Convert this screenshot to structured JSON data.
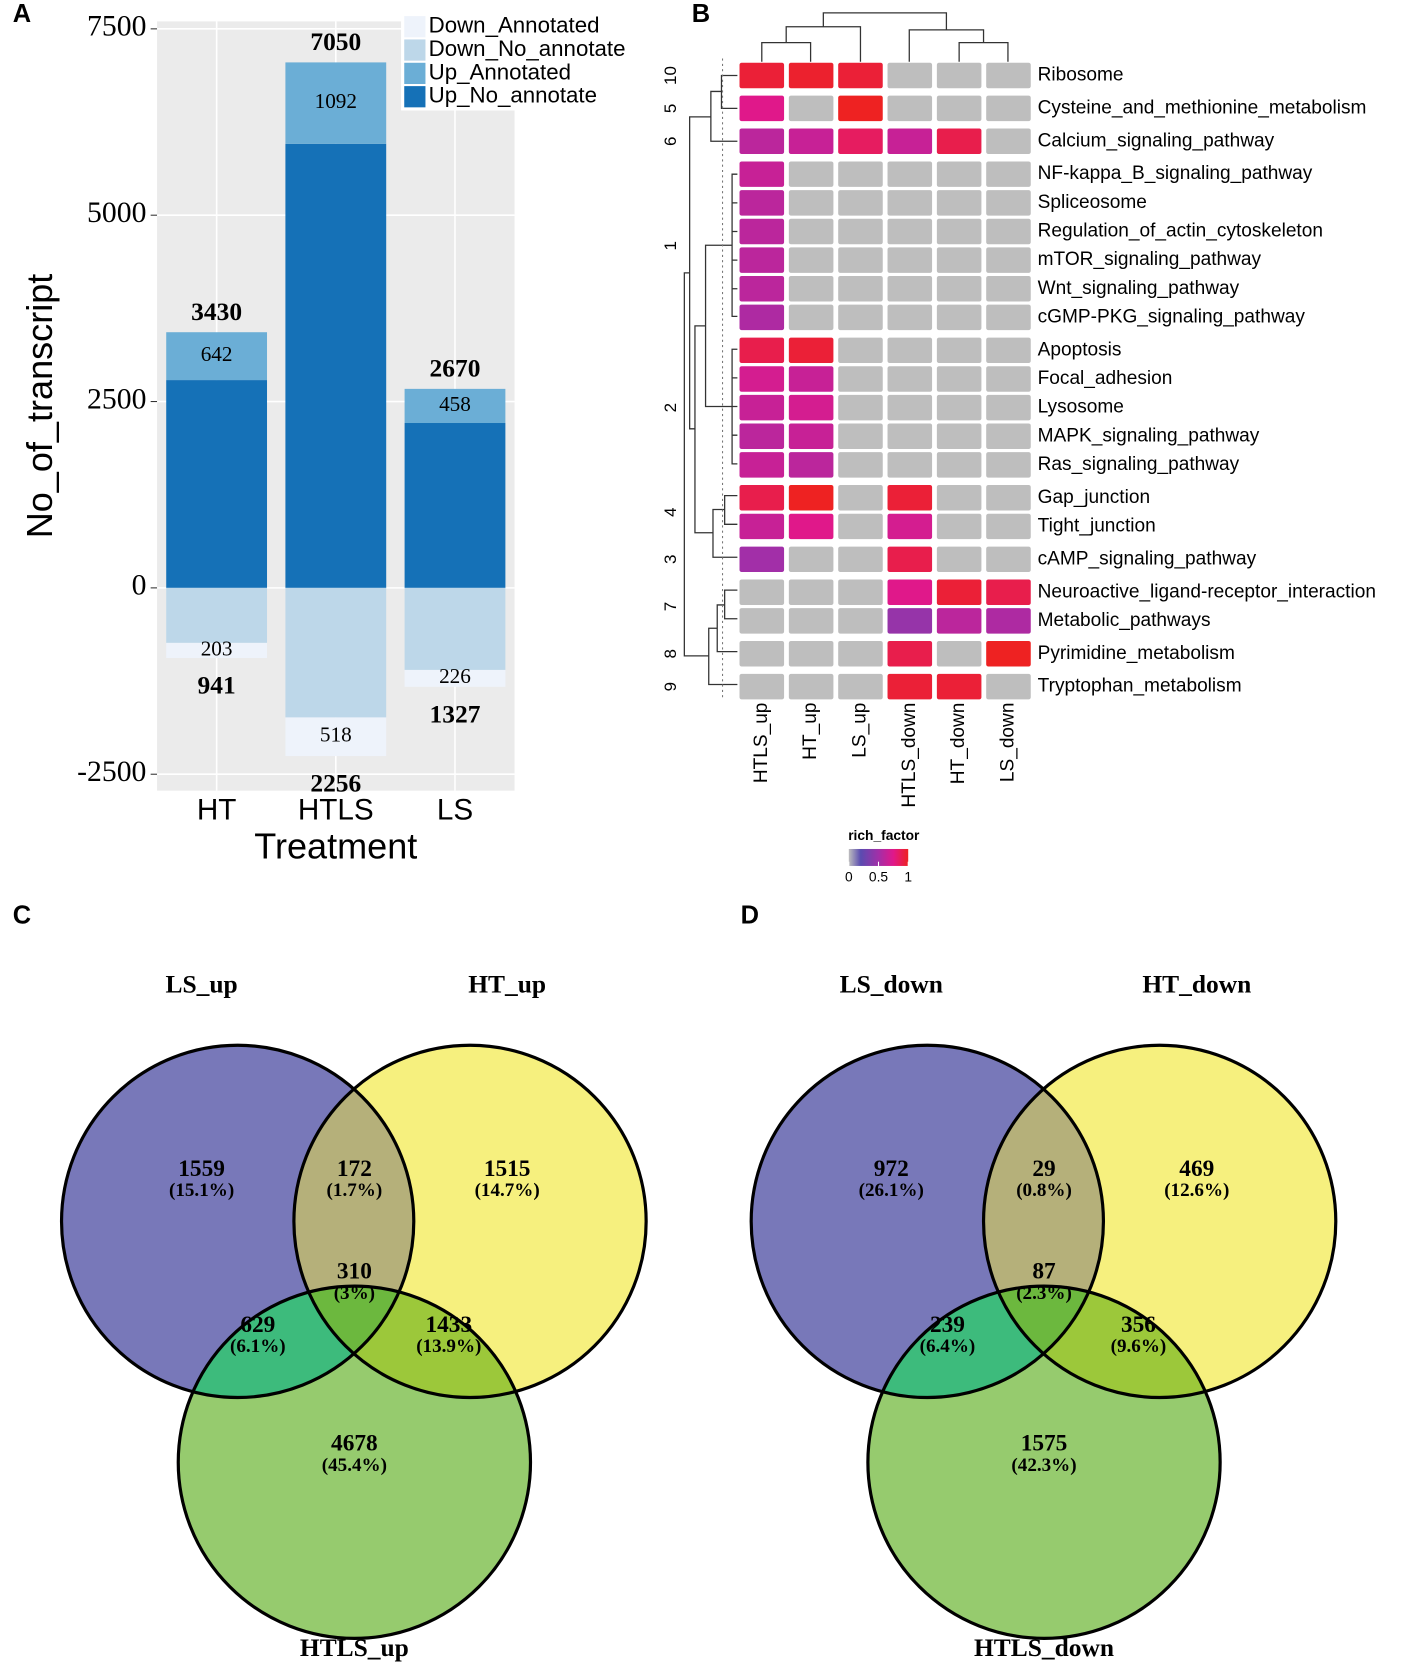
{
  "chart_data": [
    {
      "type": "bar",
      "panel": "A",
      "x_label": "Treatment",
      "y_label": "No_of_transcript",
      "categories": [
        "HT",
        "HTLS",
        "LS"
      ],
      "series": [
        {
          "name": "Down_Annotated",
          "color": "#eef3fb",
          "values": [
            -203,
            -518,
            -226
          ],
          "value_labels": [
            "203",
            "518",
            "226"
          ]
        },
        {
          "name": "Down_No_annotate",
          "color": "#bdd7e9",
          "values": [
            -738,
            -1738,
            -1101
          ]
        },
        {
          "name": "Up_Annotated",
          "color": "#6baed6",
          "values": [
            642,
            1092,
            458
          ],
          "labeled": true
        },
        {
          "name": "Up_No_annotate",
          "color": "#1571b7",
          "values": [
            2788,
            5958,
            2212
          ]
        }
      ],
      "up_totals": [
        3430,
        7050,
        2670
      ],
      "down_totals": [
        941,
        2256,
        1327
      ],
      "ylim": [
        -2720,
        7600
      ],
      "yticks": [
        7500,
        5000,
        2500,
        0,
        -2500
      ],
      "grid": true,
      "legend": "top-right"
    },
    {
      "type": "heatmap",
      "panel": "B",
      "rows": [
        "Ribosome",
        "Cysteine_and_methionine_metabolism",
        "Calcium_signaling_pathway",
        "NF-kappa_B_signaling_pathway",
        "Spliceosome",
        "Regulation_of_actin_cytoskeleton",
        "mTOR_signaling_pathway",
        "Wnt_signaling_pathway",
        "cGMP-PKG_signaling_pathway",
        "Apoptosis",
        "Focal_adhesion",
        "Lysosome",
        "MAPK_signaling_pathway",
        "Ras_signaling_pathway",
        "Gap_junction",
        "Tight_junction",
        "cAMP_signaling_pathway",
        "Neuroactive_ligand-receptor_interaction",
        "Metabolic_pathways",
        "Pyrimidine_metabolism",
        "Tryptophan_metabolism"
      ],
      "columns": [
        "HTLS_up",
        "HT_up",
        "LS_up",
        "HTLS_down",
        "HT_down",
        "LS_down"
      ],
      "values": [
        [
          0.95,
          0.97,
          0.95,
          null,
          null,
          null
        ],
        [
          0.75,
          null,
          1,
          null,
          null,
          null
        ],
        [
          0.6,
          0.65,
          0.85,
          0.65,
          0.9,
          null
        ],
        [
          0.65,
          null,
          null,
          null,
          null,
          null
        ],
        [
          0.6,
          null,
          null,
          null,
          null,
          null
        ],
        [
          0.6,
          null,
          null,
          null,
          null,
          null
        ],
        [
          0.6,
          null,
          null,
          null,
          null,
          null
        ],
        [
          0.6,
          null,
          null,
          null,
          null,
          null
        ],
        [
          0.55,
          null,
          null,
          null,
          null,
          null
        ],
        [
          0.9,
          0.95,
          null,
          null,
          null,
          null
        ],
        [
          0.7,
          0.65,
          null,
          null,
          null,
          null
        ],
        [
          0.65,
          0.7,
          null,
          null,
          null,
          null
        ],
        [
          0.6,
          0.65,
          null,
          null,
          null,
          null
        ],
        [
          0.65,
          0.6,
          null,
          null,
          null,
          null
        ],
        [
          0.9,
          1,
          null,
          0.95,
          null,
          null
        ],
        [
          0.65,
          0.75,
          null,
          0.7,
          null,
          null
        ],
        [
          0.5,
          null,
          null,
          0.9,
          null,
          null
        ],
        [
          null,
          null,
          null,
          0.75,
          0.95,
          0.9
        ],
        [
          null,
          null,
          null,
          0.45,
          0.6,
          0.55
        ],
        [
          null,
          null,
          null,
          0.9,
          null,
          1
        ],
        [
          null,
          null,
          null,
          0.95,
          0.95,
          null
        ]
      ],
      "row_groups": [
        "10",
        "5",
        "6",
        "1",
        "2",
        "4",
        "3",
        "7",
        "8",
        "9"
      ],
      "row_group_sizes": [
        1,
        1,
        1,
        6,
        5,
        2,
        1,
        2,
        1,
        1
      ],
      "na_color": "#bebebe",
      "colorbar_title": "rich_factor",
      "colorscale": [
        [
          0,
          "#bebebe"
        ],
        [
          0.2,
          "#5a4bb0"
        ],
        [
          0.5,
          "#a22fa8"
        ],
        [
          0.75,
          "#e0188a"
        ],
        [
          1,
          "#ee2222"
        ]
      ],
      "zlim": [
        0,
        1
      ],
      "zticks": [
        0,
        0.5,
        1
      ]
    },
    {
      "type": "venn",
      "panel": "C",
      "sets": [
        {
          "name": "LS_up",
          "color": "#7878b9",
          "label_color": "#3f4fa3"
        },
        {
          "name": "HT_up",
          "color": "#f6f07e",
          "label_color": "#7d7d2c"
        },
        {
          "name": "HTLS_up",
          "color": "#96cb6e",
          "label_color": "#2e8b3a"
        }
      ],
      "values": [
        1559,
        172,
        1515,
        629,
        310,
        1433,
        4678
      ],
      "percent_labels": [
        "(15.1%)",
        "(1.7%)",
        "(14.7%)",
        "(6.1%)",
        "(3%)",
        "(13.9%)",
        "(45.4%)"
      ],
      "overlap_colors": [
        "#b5b07a",
        "#3dbb7c",
        "#9cc83a",
        "#6cb83e"
      ]
    },
    {
      "type": "venn",
      "panel": "D",
      "sets": [
        {
          "name": "LS_down",
          "color": "#7878b9",
          "label_color": "#3f4fa3"
        },
        {
          "name": "HT_down",
          "color": "#f6f07e",
          "label_color": "#7d7d2c"
        },
        {
          "name": "HTLS_down",
          "color": "#96cb6e",
          "label_color": "#2e8b3a"
        }
      ],
      "values": [
        972,
        29,
        469,
        239,
        87,
        356,
        1575
      ],
      "percent_labels": [
        "(26.1%)",
        "(0.8%)",
        "(12.6%)",
        "(6.4%)",
        "(2.3%)",
        "(9.6%)",
        "(42.3%)"
      ],
      "overlap_colors": [
        "#b5b07a",
        "#3dbb7c",
        "#9cc83a",
        "#6cb83e"
      ]
    }
  ]
}
